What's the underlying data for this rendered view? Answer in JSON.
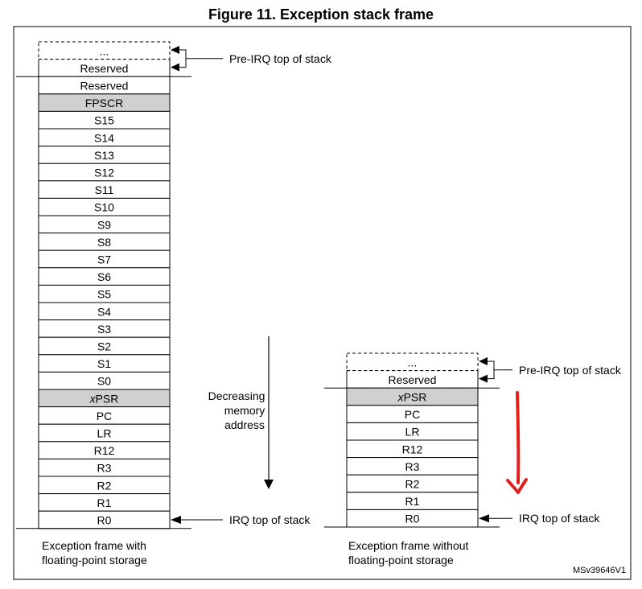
{
  "title": "Figure 11. Exception stack frame",
  "left_frame": {
    "top_cells": [
      "...",
      "Reserved"
    ],
    "cells": [
      "Reserved",
      "FPSCR",
      "S15",
      "S14",
      "S13",
      "S12",
      "S11",
      "S10",
      "S9",
      "S8",
      "S7",
      "S6",
      "S5",
      "S4",
      "S3",
      "S2",
      "S1",
      "S0",
      "xPSR",
      "PC",
      "LR",
      "R12",
      "R3",
      "R2",
      "R1",
      "R0"
    ],
    "shaded": [
      "FPSCR",
      "xPSR"
    ],
    "pre_irq_label": "Pre-IRQ top of stack",
    "irq_label": "IRQ top of stack",
    "caption": [
      "Exception frame with",
      "floating-point storage"
    ]
  },
  "right_frame": {
    "top_cells": [
      "...",
      "Reserved"
    ],
    "cells": [
      "xPSR",
      "PC",
      "LR",
      "R12",
      "R3",
      "R2",
      "R1",
      "R0"
    ],
    "shaded": [
      "xPSR"
    ],
    "pre_irq_label": "Pre-IRQ top of stack",
    "irq_label": "IRQ top of stack",
    "caption": [
      "Exception frame without",
      "floating-point storage"
    ]
  },
  "memory_arrow_label": [
    "Decreasing",
    "memory",
    "address"
  ],
  "figure_id": "MSv39646V1",
  "colors": {
    "shade": "#d0d0d0",
    "annotation_arrow": "#e0201c",
    "border": "#000000"
  }
}
